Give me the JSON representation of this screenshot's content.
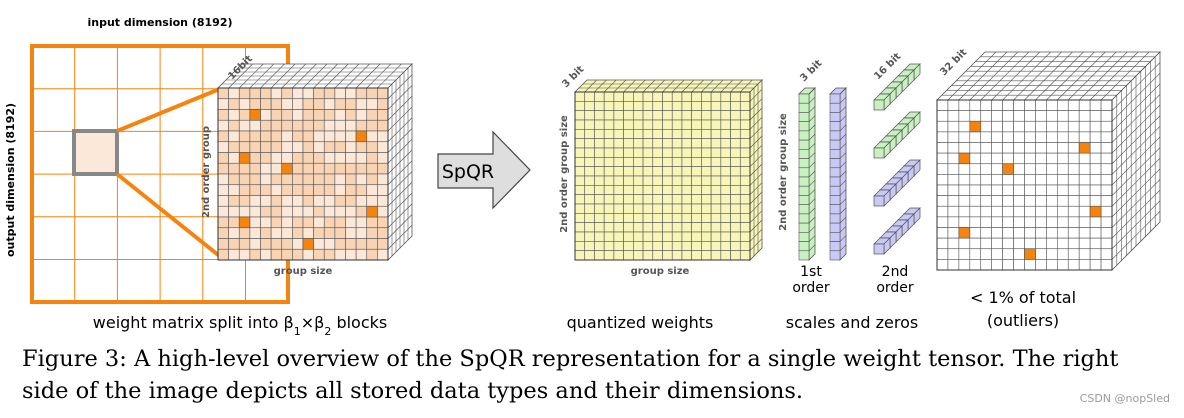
{
  "labels": {
    "input_dimension": "input dimension (8192)",
    "output_dimension": "output dimension (8192)",
    "bits_16": "16bit",
    "second_order_group": "2nd order group",
    "group_size": "group size",
    "split_caption_prefix": "weight matrix split into β",
    "split_sub1": "1",
    "split_times": "×β",
    "split_sub2": "2",
    "split_suffix": " blocks",
    "spqr_arrow": "SpQR",
    "bits_3_weights": "3 bit",
    "second_order_group_size": "2nd order group size",
    "group_size_weights": "group size",
    "quantized_weights": "quantized weights",
    "bits_3_scales": "3 bit",
    "second_order_group_size_scales": "2nd order group size",
    "bits_16_scales": "16 bit",
    "first_order_1": "1st",
    "first_order_2": "order",
    "second_order_1": "2nd",
    "second_order_2": "order",
    "scales_and_zeros": "scales and zeros",
    "bits_32": "32 bit",
    "outliers_1": "< 1% of total",
    "outliers_2": "(outliers)"
  },
  "caption": "Figure 3: A high-level overview of the SpQR representation for a single weight tensor. The right side of the image depicts all stored data types and their dimensions.",
  "watermark": "CSDN @nopSled",
  "colors": {
    "orange": "#f5840f",
    "peach": "#f8d3b4",
    "peach_light": "#fce8d8",
    "yellow": "#f8f5b8",
    "green": "#c8f0c0",
    "lavender": "#c9c9f5",
    "gray_frame": "#888888",
    "arrow_fill": "#dedede"
  }
}
